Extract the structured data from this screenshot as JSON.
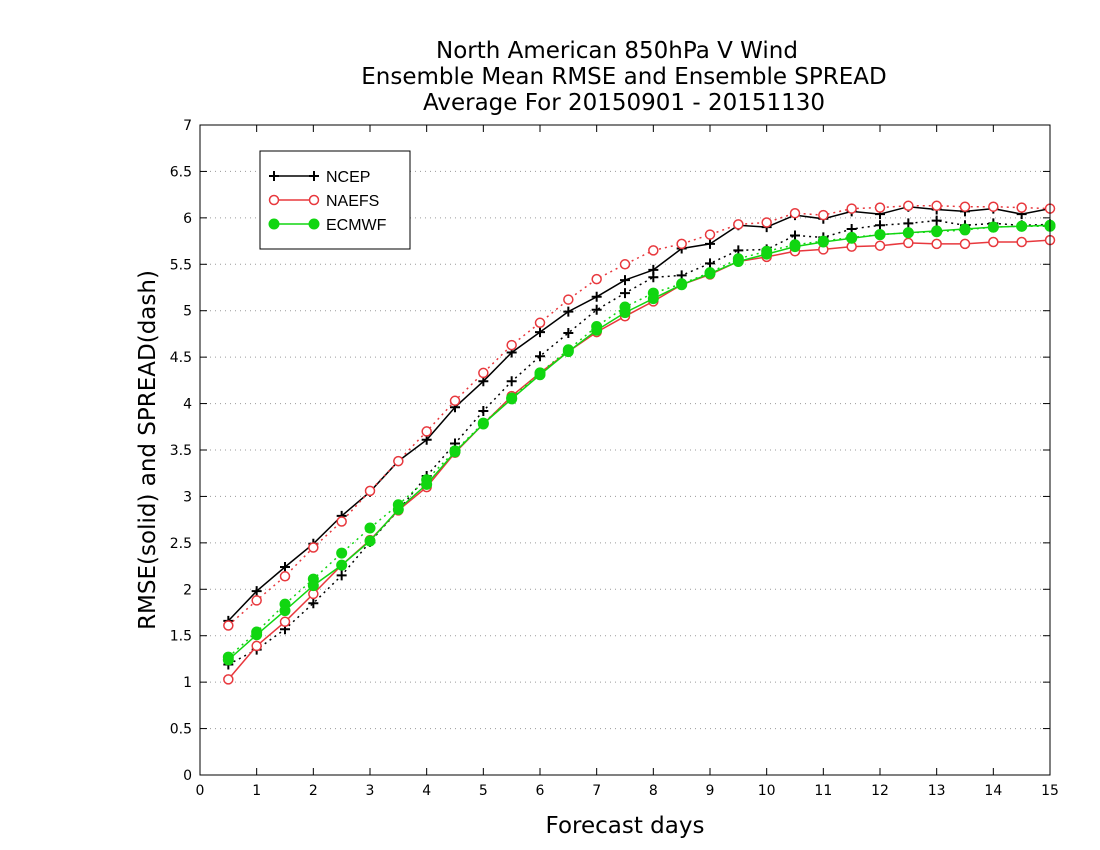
{
  "chart_data": {
    "type": "line",
    "title": [
      "North American 850hPa V Wind",
      "Ensemble Mean RMSE and Ensemble SPREAD",
      "Average For 20150901 - 20151130"
    ],
    "xlabel": "Forecast days",
    "ylabel": "RMSE(solid) and SPREAD(dash)",
    "xlim": [
      0,
      15
    ],
    "ylim": [
      0,
      7
    ],
    "x_ticks": [
      "0",
      "1",
      "2",
      "3",
      "4",
      "5",
      "6",
      "7",
      "8",
      "9",
      "10",
      "11",
      "12",
      "13",
      "14",
      "15"
    ],
    "y_ticks": [
      "0",
      "0.5",
      "1",
      "1.5",
      "2",
      "2.5",
      "3",
      "3.5",
      "4",
      "4.5",
      "5",
      "5.5",
      "6",
      "6.5",
      "7"
    ],
    "grid": "horizontal dotted",
    "legend_position": "top-left",
    "series": [
      {
        "name": "NCEP",
        "color": "#000000",
        "marker": "plus",
        "rmse_x": [
          0.5,
          1,
          1.5,
          2,
          2.5,
          3,
          3.5,
          4,
          4.5,
          5,
          5.5,
          6,
          6.5,
          7,
          7.5,
          8,
          8.5,
          9,
          9.5,
          10,
          10.5,
          11,
          11.5,
          12,
          12.5,
          13,
          13.5,
          14,
          14.5,
          15
        ],
        "rmse": [
          1.66,
          1.98,
          2.24,
          2.49,
          2.79,
          3.05,
          3.38,
          3.61,
          3.96,
          4.24,
          4.55,
          4.77,
          4.99,
          5.15,
          5.33,
          5.44,
          5.67,
          5.72,
          5.92,
          5.9,
          6.03,
          5.99,
          6.07,
          6.04,
          6.12,
          6.09,
          6.07,
          6.1,
          6.04,
          6.1
        ],
        "spread_x": [
          0.5,
          1,
          1.5,
          2,
          2.5,
          3,
          3.5,
          4,
          4.5,
          5,
          5.5,
          6,
          6.5,
          7,
          7.5,
          8,
          8.5,
          9,
          9.5,
          10,
          10.5,
          11,
          11.5,
          12,
          12.5,
          13,
          13.5,
          14,
          14.5,
          15
        ],
        "spread": [
          1.19,
          1.35,
          1.57,
          1.85,
          2.15,
          2.51,
          2.85,
          3.22,
          3.57,
          3.92,
          4.24,
          4.51,
          4.76,
          5.01,
          5.19,
          5.36,
          5.38,
          5.51,
          5.65,
          5.66,
          5.81,
          5.79,
          5.88,
          5.92,
          5.94,
          5.97,
          5.92,
          5.94,
          5.92,
          5.93
        ]
      },
      {
        "name": "NAEFS",
        "color": "#e8383d",
        "marker": "open-circle",
        "rmse_x": [
          0.5,
          1,
          1.5,
          2,
          2.5,
          3,
          3.5,
          4,
          4.5,
          5,
          5.5,
          6,
          6.5,
          7,
          7.5,
          8,
          8.5,
          9,
          9.5,
          10,
          10.5,
          11,
          11.5,
          12,
          12.5,
          13,
          13.5,
          14,
          14.5,
          15
        ],
        "rmse": [
          1.03,
          1.39,
          1.65,
          1.95,
          2.26,
          2.53,
          2.85,
          3.1,
          3.47,
          3.78,
          4.08,
          4.33,
          4.56,
          4.77,
          4.94,
          5.1,
          5.28,
          5.39,
          5.53,
          5.58,
          5.64,
          5.66,
          5.69,
          5.7,
          5.73,
          5.72,
          5.72,
          5.74,
          5.74,
          5.76
        ],
        "spread_x": [
          0.5,
          1,
          1.5,
          2,
          2.5,
          3,
          3.5,
          4,
          4.5,
          5,
          5.5,
          6,
          6.5,
          7,
          7.5,
          8,
          8.5,
          9,
          9.5,
          10,
          10.5,
          11,
          11.5,
          12,
          12.5,
          13,
          13.5,
          14,
          14.5,
          15
        ],
        "spread": [
          1.61,
          1.88,
          2.14,
          2.45,
          2.73,
          3.06,
          3.38,
          3.7,
          4.03,
          4.33,
          4.63,
          4.87,
          5.12,
          5.34,
          5.5,
          5.65,
          5.72,
          5.82,
          5.93,
          5.95,
          6.05,
          6.03,
          6.1,
          6.11,
          6.13,
          6.13,
          6.12,
          6.12,
          6.11,
          6.1
        ]
      },
      {
        "name": "ECMWF",
        "color": "#11d611",
        "marker": "filled-circle",
        "rmse_x": [
          0.5,
          1,
          1.5,
          2,
          2.5,
          3,
          3.5,
          4,
          4.5,
          5,
          5.5,
          6,
          6.5,
          7,
          7.5,
          8,
          8.5,
          9,
          9.5,
          10,
          10.5,
          11,
          11.5,
          12,
          12.5,
          13,
          13.5,
          14,
          14.5,
          15
        ],
        "rmse": [
          1.24,
          1.51,
          1.77,
          2.04,
          2.26,
          2.52,
          2.86,
          3.13,
          3.48,
          3.78,
          4.05,
          4.31,
          4.56,
          4.79,
          4.98,
          5.13,
          5.28,
          5.4,
          5.53,
          5.61,
          5.69,
          5.74,
          5.78,
          5.82,
          5.84,
          5.86,
          5.88,
          5.9,
          5.91,
          5.92
        ],
        "spread_x": [
          0.5,
          1,
          1.5,
          2,
          2.5,
          3,
          3.5,
          4,
          4.5,
          5,
          5.5,
          6,
          6.5,
          7,
          7.5,
          8,
          8.5,
          9,
          9.5,
          10,
          10.5,
          11,
          11.5,
          12,
          12.5,
          13,
          13.5,
          14,
          14.5,
          15
        ],
        "spread": [
          1.27,
          1.54,
          1.84,
          2.11,
          2.39,
          2.66,
          2.91,
          3.18,
          3.49,
          3.79,
          4.06,
          4.33,
          4.58,
          4.83,
          5.04,
          5.19,
          5.29,
          5.41,
          5.56,
          5.64,
          5.71,
          5.75,
          5.79,
          5.82,
          5.84,
          5.85,
          5.87,
          5.9,
          5.91,
          5.91
        ]
      }
    ]
  }
}
